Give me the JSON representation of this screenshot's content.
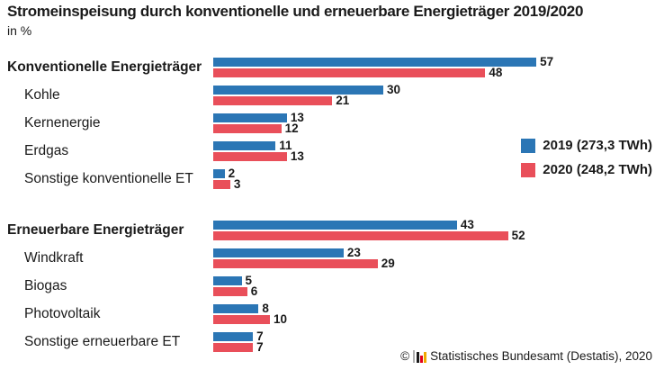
{
  "header": {
    "title": "Stromeinspeisung durch konventionelle und erneuerbare Energieträger 2019/2020",
    "subtitle": "in %"
  },
  "chart_data": {
    "type": "bar",
    "orientation": "horizontal",
    "unit": "%",
    "title": "Stromeinspeisung durch konventionelle und erneuerbare Energieträger 2019/2020",
    "xlim": [
      0,
      60
    ],
    "grid": false,
    "value_labels": true,
    "legend_position": "right",
    "categories": [
      "Konventionelle Energieträger",
      "Kohle",
      "Kernenergie",
      "Erdgas",
      "Sonstige konventionelle ET",
      "Erneuerbare Energieträger",
      "Windkraft",
      "Biogas",
      "Photovoltaik",
      "Sonstige erneuerbare ET"
    ],
    "group_rows": [
      0,
      5
    ],
    "series": [
      {
        "key": "2019",
        "name": "2019 (273,3 TWh)",
        "color": "#2b76b5",
        "values": [
          57,
          30,
          13,
          11,
          2,
          43,
          23,
          5,
          8,
          7
        ]
      },
      {
        "key": "2020",
        "name": "2020 (248,2 TWh)",
        "color": "#e94f5a",
        "values": [
          48,
          21,
          12,
          13,
          3,
          52,
          29,
          6,
          10,
          7
        ]
      }
    ]
  },
  "footer": {
    "copyright_symbol": "©",
    "source_text": "Statistisches Bundesamt (Destatis), 2020",
    "logo_bar_colors": [
      "#1a1a1a",
      "#e2001a",
      "#f0aa00"
    ],
    "logo_frame_color": "#b1b1b1"
  }
}
